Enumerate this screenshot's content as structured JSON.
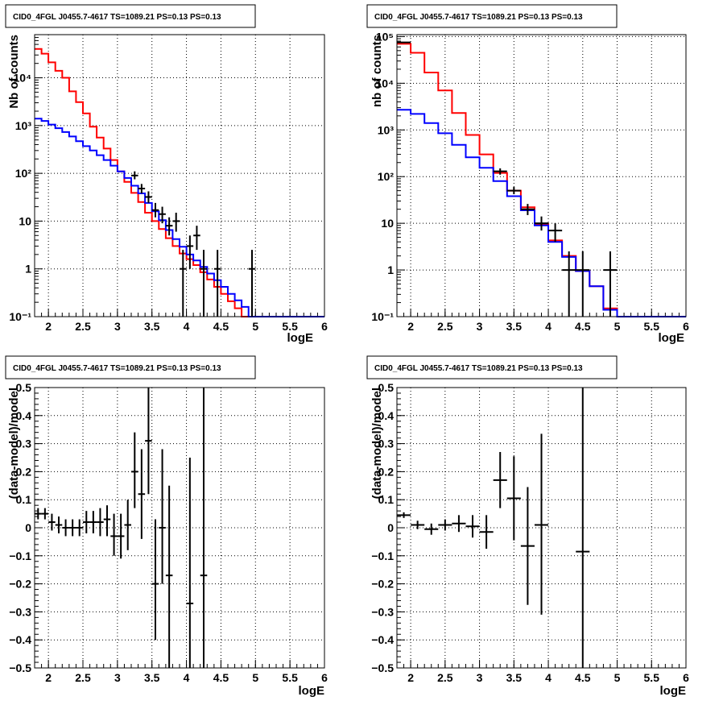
{
  "chart_data": [
    {
      "id": "counts-fine",
      "type": "line",
      "title": "CID0_4FGL J0455.7-4617 TS=1089.21 PS=0.13 PS=0.13",
      "xlabel": "logE",
      "ylabel": "Nb of counts",
      "log_y": true,
      "xlim": [
        1.8,
        6
      ],
      "ylim": [
        0.1,
        80000
      ],
      "x_ticks": [
        2,
        2.5,
        3,
        3.5,
        4,
        4.5,
        5,
        5.5,
        6
      ],
      "x_tick_labels": [
        "2",
        "2.5",
        "3",
        "3.5",
        "4",
        "4.5",
        "5",
        "5.5",
        "6"
      ],
      "y_ticks": [
        0.1,
        1,
        10,
        100,
        1000,
        10000
      ],
      "y_tick_labels": [
        "10⁻¹",
        "1",
        "10",
        "10²",
        "10³",
        "10⁴"
      ],
      "grid": true,
      "colors": {
        "total_model": "#ff0000",
        "source_model": "#0000ff",
        "data": "#000000"
      },
      "bin_edges": [
        1.8,
        1.9,
        2.0,
        2.1,
        2.2,
        2.3,
        2.4,
        2.5,
        2.6,
        2.7,
        2.8,
        2.9,
        3.0,
        3.1,
        3.2,
        3.3,
        3.4,
        3.5,
        3.6,
        3.7,
        3.8,
        3.9,
        4.0,
        4.1,
        4.2,
        4.3,
        4.4,
        4.5,
        4.6,
        4.7,
        4.8,
        4.9,
        5.0,
        5.1,
        5.2,
        5.3,
        5.4,
        5.5,
        5.6,
        5.7,
        5.8,
        5.9,
        6.0
      ],
      "series": [
        {
          "kind": "step",
          "color": "#ff0000",
          "values": [
            40000,
            32000,
            21000,
            14000,
            10000,
            5200,
            3100,
            1800,
            950,
            560,
            330,
            190,
            110,
            66,
            39,
            25,
            15,
            10,
            6.8,
            4.4,
            3.0,
            2.1,
            1.6,
            1.2,
            0.85,
            0.6,
            0.42,
            0.3,
            0.21,
            0.15,
            0.1,
            0.1,
            0.1,
            0.1,
            0.1,
            0.1,
            0.1,
            0.1,
            0.1,
            0.1,
            0.1,
            0.1
          ]
        },
        {
          "kind": "step",
          "color": "#0000ff",
          "values": [
            1400,
            1250,
            1050,
            880,
            730,
            590,
            470,
            370,
            300,
            240,
            190,
            145,
            110,
            80,
            55,
            38,
            24,
            16,
            10.5,
            6.5,
            4.2,
            2.9,
            2.0,
            1.5,
            1.1,
            0.8,
            0.58,
            0.42,
            0.3,
            0.22,
            0.16,
            0.1,
            0.1,
            0.1,
            0.1,
            0.1,
            0.1,
            0.1,
            0.1,
            0.1,
            0.1,
            0.1
          ]
        },
        {
          "kind": "errorbar",
          "color": "#000000",
          "points": [
            {
              "x": 3.25,
              "y": 90,
              "lo": 75,
              "hi": 110
            },
            {
              "x": 3.35,
              "y": 48,
              "lo": 38,
              "hi": 60
            },
            {
              "x": 3.45,
              "y": 32,
              "lo": 24,
              "hi": 42
            },
            {
              "x": 3.55,
              "y": 17,
              "lo": 12,
              "hi": 24
            },
            {
              "x": 3.65,
              "y": 14,
              "lo": 9,
              "hi": 20
            },
            {
              "x": 3.75,
              "y": 8,
              "lo": 5,
              "hi": 12
            },
            {
              "x": 3.85,
              "y": 10,
              "lo": 6,
              "hi": 15
            },
            {
              "x": 3.95,
              "y": 1,
              "lo": 0.1,
              "hi": 2.5
            },
            {
              "x": 4.05,
              "y": 3,
              "lo": 1,
              "hi": 5
            },
            {
              "x": 4.15,
              "y": 5,
              "lo": 2.5,
              "hi": 8
            },
            {
              "x": 4.25,
              "y": 1,
              "lo": 0.1,
              "hi": 2.5
            },
            {
              "x": 4.45,
              "y": 1,
              "lo": 0.1,
              "hi": 2.5
            },
            {
              "x": 4.95,
              "y": 1,
              "lo": 0.1,
              "hi": 2.5
            }
          ]
        }
      ]
    },
    {
      "id": "counts-coarse",
      "type": "line",
      "title": "CID0_4FGL J0455.7-4617 TS=1089.21 PS=0.13 PS=0.13",
      "xlabel": "logE",
      "ylabel": "nb of counts",
      "log_y": true,
      "xlim": [
        1.8,
        6
      ],
      "ylim": [
        0.1,
        110000
      ],
      "x_ticks": [
        2,
        2.5,
        3,
        3.5,
        4,
        4.5,
        5,
        5.5,
        6
      ],
      "x_tick_labels": [
        "2",
        "2.5",
        "3",
        "3.5",
        "4",
        "4.5",
        "5",
        "5.5",
        "6"
      ],
      "y_ticks": [
        0.1,
        1,
        10,
        100,
        1000,
        10000,
        100000
      ],
      "y_tick_labels": [
        "10⁻¹",
        "1",
        "10",
        "10²",
        "10³",
        "10⁴",
        "10⁵"
      ],
      "grid": true,
      "colors": {
        "total_model": "#ff0000",
        "source_model": "#0000ff",
        "data": "#000000"
      },
      "bin_edges": [
        1.8,
        2.0,
        2.2,
        2.4,
        2.6,
        2.8,
        3.0,
        3.2,
        3.4,
        3.6,
        3.8,
        4.0,
        4.2,
        4.4,
        4.6,
        4.8,
        5.0,
        5.2,
        5.4,
        5.6,
        5.8,
        6.0
      ],
      "series": [
        {
          "kind": "step",
          "color": "#ff0000",
          "values": [
            70000,
            45000,
            17000,
            7000,
            2300,
            780,
            300,
            120,
            50,
            22,
            9.5,
            4.3,
            2.0,
            0.95,
            0.45,
            0.15,
            0.1,
            0.1,
            0.1,
            0.1,
            0.1
          ]
        },
        {
          "kind": "step",
          "color": "#0000ff",
          "values": [
            2700,
            2200,
            1400,
            850,
            480,
            260,
            155,
            80,
            38,
            19,
            9,
            4.0,
            1.9,
            0.95,
            0.45,
            0.14,
            0.1,
            0.1,
            0.1,
            0.1,
            0.1
          ]
        },
        {
          "kind": "errorbar",
          "color": "#000000",
          "points": [
            {
              "x": 1.9,
              "y": 75000,
              "lo": 74000,
              "hi": 76000
            },
            {
              "x": 3.3,
              "y": 130,
              "lo": 110,
              "hi": 150
            },
            {
              "x": 3.5,
              "y": 50,
              "lo": 42,
              "hi": 60
            },
            {
              "x": 3.7,
              "y": 20,
              "lo": 15,
              "hi": 26
            },
            {
              "x": 3.9,
              "y": 10,
              "lo": 7,
              "hi": 14
            },
            {
              "x": 4.1,
              "y": 7,
              "lo": 4,
              "hi": 10
            },
            {
              "x": 4.3,
              "y": 1,
              "lo": 0.1,
              "hi": 2.5
            },
            {
              "x": 4.5,
              "y": 1,
              "lo": 0.1,
              "hi": 2.5
            },
            {
              "x": 4.9,
              "y": 1,
              "lo": 0.1,
              "hi": 2.5
            }
          ]
        }
      ]
    },
    {
      "id": "residuals-fine",
      "type": "scatter",
      "title": "CID0_4FGL J0455.7-4617 TS=1089.21 PS=0.13 PS=0.13",
      "xlabel": "logE",
      "ylabel": "(data-model)/model",
      "log_y": false,
      "xlim": [
        1.8,
        6
      ],
      "ylim": [
        -0.5,
        0.5
      ],
      "x_ticks": [
        2,
        2.5,
        3,
        3.5,
        4,
        4.5,
        5,
        5.5,
        6
      ],
      "x_tick_labels": [
        "2",
        "2.5",
        "3",
        "3.5",
        "4",
        "4.5",
        "5",
        "5.5",
        "6"
      ],
      "y_ticks": [
        -0.5,
        -0.4,
        -0.3,
        -0.2,
        -0.1,
        0,
        0.1,
        0.2,
        0.3,
        0.4,
        0.5
      ],
      "y_tick_labels": [
        "−0.5",
        "−0.4",
        "−0.3",
        "−0.2",
        "−0.1",
        "0",
        "0.1",
        "0.2",
        "0.3",
        "0.4",
        "0.5"
      ],
      "grid": true,
      "series": [
        {
          "kind": "errorbar",
          "color": "#000000",
          "xerr": 0.05,
          "points": [
            {
              "x": 1.85,
              "y": 0.05,
              "lo": 0.03,
              "hi": 0.07
            },
            {
              "x": 1.95,
              "y": 0.05,
              "lo": 0.03,
              "hi": 0.07
            },
            {
              "x": 2.05,
              "y": 0.02,
              "lo": -0.01,
              "hi": 0.05
            },
            {
              "x": 2.15,
              "y": 0.01,
              "lo": -0.02,
              "hi": 0.04
            },
            {
              "x": 2.25,
              "y": 0.0,
              "lo": -0.03,
              "hi": 0.03
            },
            {
              "x": 2.35,
              "y": 0.0,
              "lo": -0.03,
              "hi": 0.03
            },
            {
              "x": 2.45,
              "y": 0.0,
              "lo": -0.03,
              "hi": 0.03
            },
            {
              "x": 2.55,
              "y": 0.02,
              "lo": -0.02,
              "hi": 0.06
            },
            {
              "x": 2.65,
              "y": 0.02,
              "lo": -0.02,
              "hi": 0.06
            },
            {
              "x": 2.75,
              "y": 0.02,
              "lo": -0.03,
              "hi": 0.07
            },
            {
              "x": 2.85,
              "y": 0.03,
              "lo": -0.03,
              "hi": 0.08
            },
            {
              "x": 2.95,
              "y": -0.03,
              "lo": -0.1,
              "hi": 0.05
            },
            {
              "x": 3.05,
              "y": -0.03,
              "lo": -0.11,
              "hi": 0.05
            },
            {
              "x": 3.15,
              "y": 0.01,
              "lo": -0.08,
              "hi": 0.1
            },
            {
              "x": 3.25,
              "y": 0.2,
              "lo": 0.07,
              "hi": 0.34
            },
            {
              "x": 3.35,
              "y": 0.12,
              "lo": -0.04,
              "hi": 0.28
            },
            {
              "x": 3.45,
              "y": 0.31,
              "lo": 0.12,
              "hi": 0.5
            },
            {
              "x": 3.55,
              "y": -0.2,
              "lo": -0.4,
              "hi": 0.03
            },
            {
              "x": 3.65,
              "y": 0.0,
              "lo": -0.2,
              "hi": 0.28
            },
            {
              "x": 3.75,
              "y": -0.17,
              "lo": -0.5,
              "hi": 0.15
            },
            {
              "x": 4.05,
              "y": -0.27,
              "lo": -0.5,
              "hi": 0.25
            },
            {
              "x": 4.25,
              "y": -0.17,
              "lo": -0.5,
              "hi": 0.5
            }
          ]
        }
      ]
    },
    {
      "id": "residuals-coarse",
      "type": "scatter",
      "title": "CID0_4FGL J0455.7-4617 TS=1089.21 PS=0.13 PS=0.13",
      "xlabel": "logE",
      "ylabel": "(data-model)/model",
      "log_y": false,
      "xlim": [
        1.8,
        6
      ],
      "ylim": [
        -0.5,
        0.5
      ],
      "x_ticks": [
        2,
        2.5,
        3,
        3.5,
        4,
        4.5,
        5,
        5.5,
        6
      ],
      "x_tick_labels": [
        "2",
        "2.5",
        "3",
        "3.5",
        "4",
        "4.5",
        "5",
        "5.5",
        "6"
      ],
      "y_ticks": [
        -0.5,
        -0.4,
        -0.3,
        -0.2,
        -0.1,
        0,
        0.1,
        0.2,
        0.3,
        0.4,
        0.5
      ],
      "y_tick_labels": [
        "−0.5",
        "−0.4",
        "−0.3",
        "−0.2",
        "−0.1",
        "0",
        "0.1",
        "0.2",
        "0.3",
        "0.4",
        "0.5"
      ],
      "grid": true,
      "series": [
        {
          "kind": "errorbar",
          "color": "#000000",
          "xerr": 0.1,
          "points": [
            {
              "x": 1.9,
              "y": 0.045,
              "lo": 0.035,
              "hi": 0.055
            },
            {
              "x": 2.1,
              "y": 0.01,
              "lo": -0.005,
              "hi": 0.025
            },
            {
              "x": 2.3,
              "y": -0.005,
              "lo": -0.025,
              "hi": 0.015
            },
            {
              "x": 2.5,
              "y": 0.01,
              "lo": -0.01,
              "hi": 0.03
            },
            {
              "x": 2.7,
              "y": 0.015,
              "lo": -0.015,
              "hi": 0.045
            },
            {
              "x": 2.9,
              "y": 0.005,
              "lo": -0.035,
              "hi": 0.045
            },
            {
              "x": 3.1,
              "y": -0.015,
              "lo": -0.075,
              "hi": 0.045
            },
            {
              "x": 3.3,
              "y": 0.17,
              "lo": 0.07,
              "hi": 0.27
            },
            {
              "x": 3.5,
              "y": 0.105,
              "lo": -0.045,
              "hi": 0.255
            },
            {
              "x": 3.7,
              "y": -0.065,
              "lo": -0.275,
              "hi": 0.145
            },
            {
              "x": 3.9,
              "y": 0.01,
              "lo": -0.31,
              "hi": 0.335
            },
            {
              "x": 4.5,
              "y": -0.085,
              "lo": -0.5,
              "hi": 0.5
            }
          ]
        }
      ]
    }
  ]
}
